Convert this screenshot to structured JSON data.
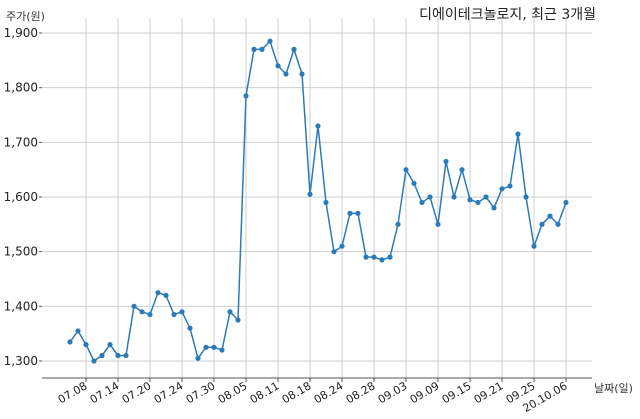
{
  "chart_data": {
    "type": "line",
    "title": "디에이테크놀로지, 최근 3개월",
    "ylabel": "주가(원)",
    "xlabel": "날짜(일)",
    "ylim": [
      1270,
      1910
    ],
    "yticks": [
      1300,
      1400,
      1500,
      1600,
      1700,
      1800,
      1900
    ],
    "ytick_labels": [
      "1,300",
      "1,400",
      "1,500",
      "1,600",
      "1,700",
      "1,800",
      "1,900"
    ],
    "xtick_labels": [
      "07.08",
      "07.14",
      "07.20",
      "07.24",
      "07.30",
      "08.05",
      "08.11",
      "08.18",
      "08.24",
      "08.28",
      "09.03",
      "09.09",
      "09.15",
      "09.21",
      "09.25",
      "20.10.06"
    ],
    "xtick_positions": [
      2,
      6,
      10,
      14,
      18,
      22,
      26,
      30,
      34,
      38,
      42,
      46,
      50,
      54,
      58,
      62
    ],
    "grid": true,
    "color": "#2b7bb9",
    "series": [
      {
        "values": [
          1335,
          1355,
          1330,
          1300,
          1310,
          1330,
          1310,
          1310,
          1400,
          1390,
          1385,
          1425,
          1420,
          1385,
          1390,
          1360,
          1305,
          1325,
          1325,
          1320,
          1390,
          1375,
          1785,
          1870,
          1870,
          1885,
          1840,
          1825,
          1870,
          1825,
          1605,
          1730,
          1590,
          1500,
          1510,
          1570,
          1570,
          1490,
          1490,
          1485,
          1490,
          1550,
          1650,
          1625,
          1590,
          1600,
          1550,
          1665,
          1600,
          1650,
          1595,
          1590,
          1600,
          1580,
          1615,
          1620,
          1715,
          1600,
          1510,
          1550,
          1565,
          1550,
          1590
        ]
      }
    ]
  }
}
